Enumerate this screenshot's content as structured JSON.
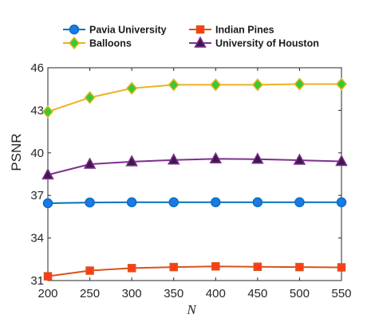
{
  "chart_data": {
    "type": "line",
    "xlabel": "N",
    "ylabel": "PSNR",
    "x": [
      200,
      250,
      300,
      350,
      400,
      450,
      500,
      550
    ],
    "xlim": [
      200,
      550
    ],
    "ylim": [
      31,
      46
    ],
    "xticks": [
      200,
      250,
      300,
      350,
      400,
      450,
      500,
      550
    ],
    "yticks": [
      31,
      34,
      37,
      40,
      43,
      46
    ],
    "grid": false,
    "legend_position": "top",
    "series": [
      {
        "name": "Pavia University",
        "color": "#0072BD",
        "marker_fill": "#1f77e8",
        "marker": "circle",
        "values": [
          36.45,
          36.5,
          36.52,
          36.52,
          36.52,
          36.52,
          36.52,
          36.52
        ]
      },
      {
        "name": "Indian Pines",
        "color": "#D95319",
        "marker_fill": "#ff3b1a",
        "marker": "square",
        "values": [
          31.3,
          31.7,
          31.88,
          31.95,
          32.0,
          31.97,
          31.95,
          31.93
        ]
      },
      {
        "name": "Balloons",
        "color": "#EDB120",
        "marker_fill": "#33cc33",
        "marker": "diamond",
        "values": [
          42.9,
          43.9,
          44.55,
          44.8,
          44.8,
          44.8,
          44.85,
          44.85
        ]
      },
      {
        "name": "University of Houston",
        "color": "#7E2F8E",
        "marker_fill": "#3d1a4d",
        "marker": "triangle",
        "values": [
          38.45,
          39.2,
          39.38,
          39.5,
          39.58,
          39.55,
          39.48,
          39.4
        ]
      }
    ]
  }
}
